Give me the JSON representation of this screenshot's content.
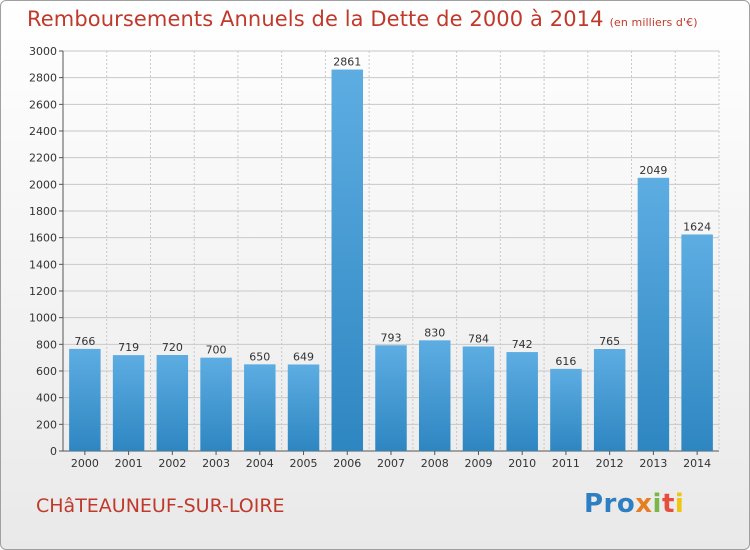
{
  "chart_data": {
    "type": "bar",
    "title": "Remboursements Annuels de la Dette de 2000 à 2014",
    "subtitle": "(en milliers d'€)",
    "xlabel": "",
    "ylabel": "",
    "categories": [
      "2000",
      "2001",
      "2002",
      "2003",
      "2004",
      "2005",
      "2006",
      "2007",
      "2008",
      "2009",
      "2010",
      "2011",
      "2012",
      "2013",
      "2014"
    ],
    "values": [
      766,
      719,
      720,
      700,
      650,
      649,
      2861,
      793,
      830,
      784,
      742,
      616,
      765,
      2049,
      1624
    ],
    "ylim": [
      0,
      3000
    ],
    "yticks": [
      0,
      200,
      400,
      600,
      800,
      1000,
      1200,
      1400,
      1600,
      1800,
      2000,
      2200,
      2400,
      2600,
      2800,
      3000
    ],
    "grid": true,
    "legend": "none",
    "bar_color_top": "#5dade2",
    "bar_color_bottom": "#2e86c1"
  },
  "footer": {
    "commune": "CHâTEAUNEUF-SUR-LOIRE",
    "logo_parts": [
      "Pro",
      "x",
      "i",
      "t",
      "i"
    ]
  },
  "colors": {
    "title": "#c0392b",
    "grid": "#c8c8c8"
  }
}
